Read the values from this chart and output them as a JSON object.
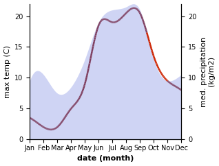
{
  "months": [
    "Jan",
    "Feb",
    "Mar",
    "Apr",
    "May",
    "Jun",
    "Jul",
    "Aug",
    "Sep",
    "Oct",
    "Nov",
    "Dec"
  ],
  "temp_max": [
    3.5,
    2.0,
    2.0,
    5.0,
    9.0,
    18.5,
    19.0,
    20.5,
    20.5,
    13.5,
    9.5,
    8.0
  ],
  "precip": [
    9.5,
    10.5,
    7.5,
    8.5,
    13.0,
    19.0,
    21.0,
    21.5,
    21.0,
    13.0,
    9.5,
    10.5
  ],
  "temp_color": "#7f3f5f",
  "temp_color_above": "#cc2200",
  "precip_color": "#b0b8ee",
  "precip_fill_alpha": 0.6,
  "ylim_left": [
    0,
    22
  ],
  "ylim_right": [
    0,
    22
  ],
  "ylabel_left": "max temp (C)",
  "ylabel_right": "med. precipitation\n(kg/m2)",
  "xlabel": "date (month)",
  "left_yticks": [
    0,
    5,
    10,
    15,
    20
  ],
  "right_yticks": [
    0,
    5,
    10,
    15,
    20
  ],
  "fig_width": 3.18,
  "fig_height": 2.42,
  "dpi": 100
}
